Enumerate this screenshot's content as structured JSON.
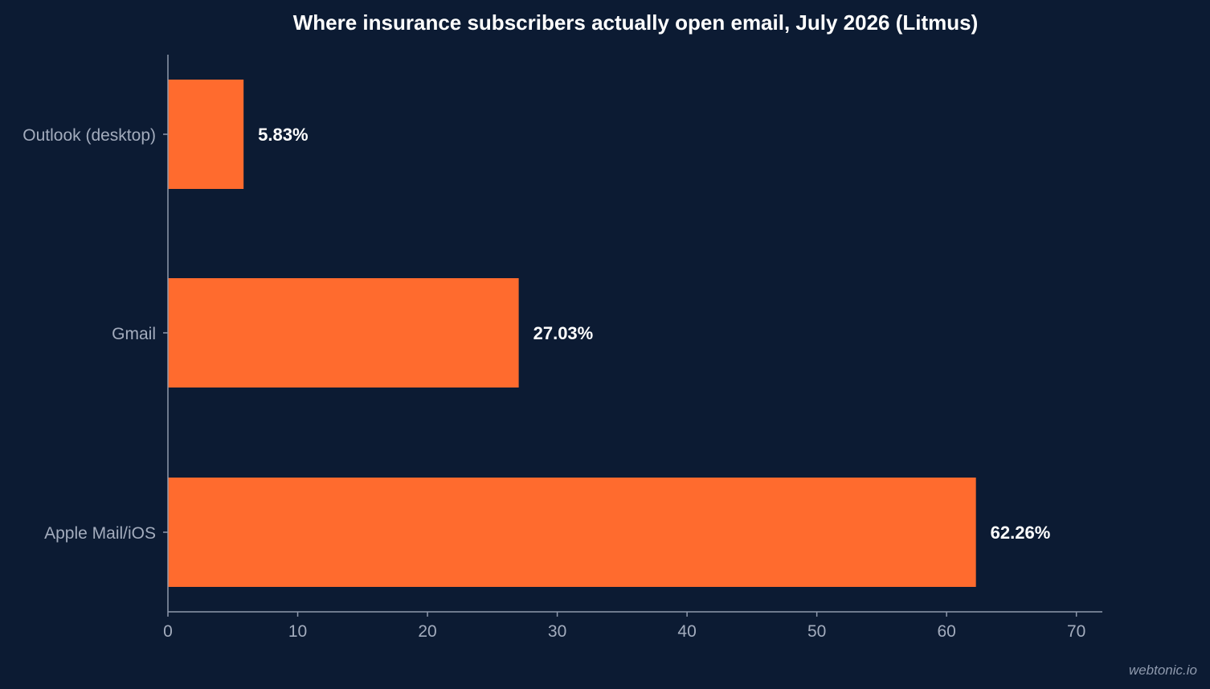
{
  "colors": {
    "background": "#0c1b33",
    "bar": "#ff6b2e",
    "axis": "#8e99ad",
    "text": "#a3acbd",
    "value_text": "#ffffff"
  },
  "chart_data": {
    "type": "bar",
    "orientation": "horizontal",
    "title": "Where insurance subscribers actually open email, July 2026 (Litmus)",
    "xlabel": "",
    "ylabel": "",
    "categories": [
      "Outlook (desktop)",
      "Gmail",
      "Apple Mail/iOS"
    ],
    "values": [
      5.83,
      27.03,
      62.26
    ],
    "value_labels": [
      "5.83%",
      "27.03%",
      "62.26%"
    ],
    "xlim": [
      0,
      72
    ],
    "x_ticks": [
      0,
      10,
      20,
      30,
      40,
      50,
      60,
      70
    ],
    "grid": false,
    "legend": "none"
  },
  "watermark": "webtonic.io"
}
